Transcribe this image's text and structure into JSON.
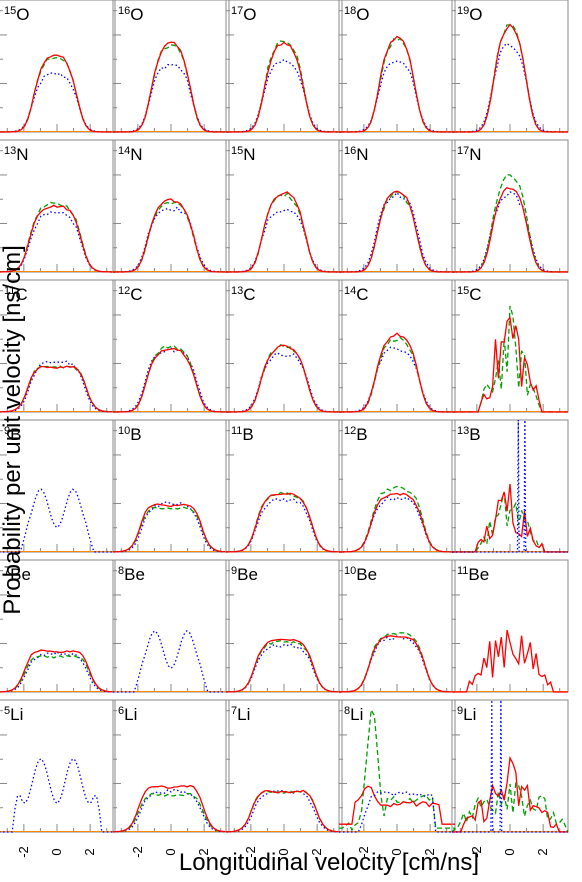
{
  "chart_data": {
    "type": "line",
    "ylabel": "Probability per unit velocity [ns/cm]",
    "xlabel": "Longitudinal velocity [cm/ns]",
    "xlim": [
      -3.5,
      3.5
    ],
    "ylim": [
      0,
      0.68
    ],
    "y_ticks": [
      "0",
      "0.25",
      "0.5"
    ],
    "x_ticks": [
      "-2",
      "0",
      "2"
    ],
    "colors": {
      "red": "#ff0000",
      "green": "#00a000",
      "blue": "#0000ff",
      "orange": "#ff8800"
    },
    "line_styles": {
      "red": "solid",
      "green": "dashed",
      "blue": "dotted"
    },
    "panels": [
      {
        "mass": "15",
        "el": "O",
        "shape": "single",
        "ar": 0.4,
        "ag": 0.39,
        "ab": 0.3,
        "c": -0.1,
        "w": 1.4
      },
      {
        "mass": "16",
        "el": "O",
        "shape": "single",
        "ar": 0.46,
        "ag": 0.45,
        "ab": 0.35,
        "c": 0.0,
        "w": 1.3
      },
      {
        "mass": "17",
        "el": "O",
        "shape": "single",
        "ar": 0.46,
        "ag": 0.48,
        "ab": 0.37,
        "c": 0.0,
        "w": 1.3
      },
      {
        "mass": "18",
        "el": "O",
        "shape": "single",
        "ar": 0.49,
        "ag": 0.48,
        "ab": 0.37,
        "c": 0.0,
        "w": 1.2
      },
      {
        "mass": "19",
        "el": "O",
        "shape": "single",
        "ar": 0.55,
        "ag": 0.56,
        "ab": 0.46,
        "c": 0.0,
        "w": 1.1
      },
      {
        "mass": "13",
        "el": "N",
        "shape": "flat",
        "ar": 0.34,
        "ag": 0.35,
        "ab": 0.3,
        "c": -0.1,
        "w": 1.6
      },
      {
        "mass": "14",
        "el": "N",
        "shape": "single",
        "ar": 0.37,
        "ag": 0.36,
        "ab": 0.33,
        "c": 0.0,
        "w": 1.5
      },
      {
        "mass": "15",
        "el": "N",
        "shape": "single",
        "ar": 0.41,
        "ag": 0.4,
        "ab": 0.32,
        "c": 0.0,
        "w": 1.4
      },
      {
        "mass": "16",
        "el": "N",
        "shape": "single",
        "ar": 0.42,
        "ag": 0.41,
        "ab": 0.4,
        "c": 0.0,
        "w": 1.3
      },
      {
        "mass": "17",
        "el": "N",
        "shape": "single",
        "ar": 0.44,
        "ag": 0.5,
        "ab": 0.4,
        "c": 0.0,
        "w": 1.2
      },
      {
        "mass": "11",
        "el": "C",
        "shape": "double",
        "ar": 0.28,
        "ag": 0.28,
        "ab": 0.26,
        "c": 0.0,
        "w": 1.7
      },
      {
        "mass": "12",
        "el": "C",
        "shape": "single",
        "ar": 0.33,
        "ag": 0.34,
        "ab": 0.32,
        "c": 0.0,
        "w": 1.6
      },
      {
        "mass": "13",
        "el": "C",
        "shape": "single",
        "ar": 0.34,
        "ag": 0.34,
        "ab": 0.3,
        "c": 0.0,
        "w": 1.5
      },
      {
        "mass": "14",
        "el": "C",
        "shape": "single",
        "ar": 0.4,
        "ag": 0.38,
        "ab": 0.33,
        "c": 0.0,
        "w": 1.4
      },
      {
        "mass": "15",
        "el": "C",
        "shape": "spiky",
        "ar": 0.68,
        "ag": 0.56,
        "ab": 0.0,
        "c": 0.0,
        "w": 1.0
      },
      {
        "mass": "9",
        "el": "B",
        "shape": "blue-only",
        "ar": 0,
        "ag": 0,
        "ab": 0.36,
        "c": 0.0,
        "w": 1.8
      },
      {
        "mass": "10",
        "el": "B",
        "shape": "double",
        "ar": 0.29,
        "ag": 0.27,
        "ab": 0.25,
        "c": 0.0,
        "w": 1.8
      },
      {
        "mass": "11",
        "el": "B",
        "shape": "flat",
        "ar": 0.3,
        "ag": 0.3,
        "ab": 0.27,
        "c": 0.0,
        "w": 1.7
      },
      {
        "mass": "12",
        "el": "B",
        "shape": "flat",
        "ar": 0.3,
        "ag": 0.33,
        "ab": 0.28,
        "c": 0.0,
        "w": 1.6
      },
      {
        "mass": "13",
        "el": "B",
        "shape": "spiky-blue",
        "ar": 0.42,
        "ag": 0.38,
        "ab": 0.68,
        "c": 0.0,
        "w": 1.1
      },
      {
        "mass": "7",
        "el": "Be",
        "shape": "double",
        "ar": 0.25,
        "ag": 0.22,
        "ab": 0.2,
        "c": 0.0,
        "w": 1.9
      },
      {
        "mass": "8",
        "el": "Be",
        "shape": "blue-only",
        "ar": 0,
        "ag": 0,
        "ab": 0.35,
        "c": 0.0,
        "w": 1.8
      },
      {
        "mass": "9",
        "el": "Be",
        "shape": "flat",
        "ar": 0.27,
        "ag": 0.26,
        "ab": 0.24,
        "c": 0.0,
        "w": 1.8
      },
      {
        "mass": "10",
        "el": "Be",
        "shape": "flat",
        "ar": 0.29,
        "ag": 0.3,
        "ab": 0.28,
        "c": 0.0,
        "w": 1.7
      },
      {
        "mass": "11",
        "el": "Be",
        "shape": "red-only",
        "ar": 0.47,
        "ag": 0,
        "ab": 0,
        "c": 0.0,
        "w": 1.4
      },
      {
        "mass": "5",
        "el": "Li",
        "shape": "blue-only",
        "ar": 0,
        "ag": 0,
        "ab": 0.42,
        "c": 0.0,
        "w": 2.3
      },
      {
        "mass": "6",
        "el": "Li",
        "shape": "double",
        "ar": 0.28,
        "ag": 0.23,
        "ab": 0.21,
        "c": 0.0,
        "w": 1.9
      },
      {
        "mass": "7",
        "el": "Li",
        "shape": "double",
        "ar": 0.25,
        "ag": 0.25,
        "ab": 0.21,
        "c": 0.0,
        "w": 1.9
      },
      {
        "mass": "8",
        "el": "Li",
        "shape": "li8",
        "ar": 0.25,
        "ag": 0.62,
        "ab": 0.23,
        "c": 0.0,
        "w": 1.9
      },
      {
        "mass": "9",
        "el": "Li",
        "shape": "li9",
        "ar": 0.4,
        "ag": 0.4,
        "ab": 0.68,
        "c": 0.0,
        "w": 1.6
      }
    ]
  }
}
